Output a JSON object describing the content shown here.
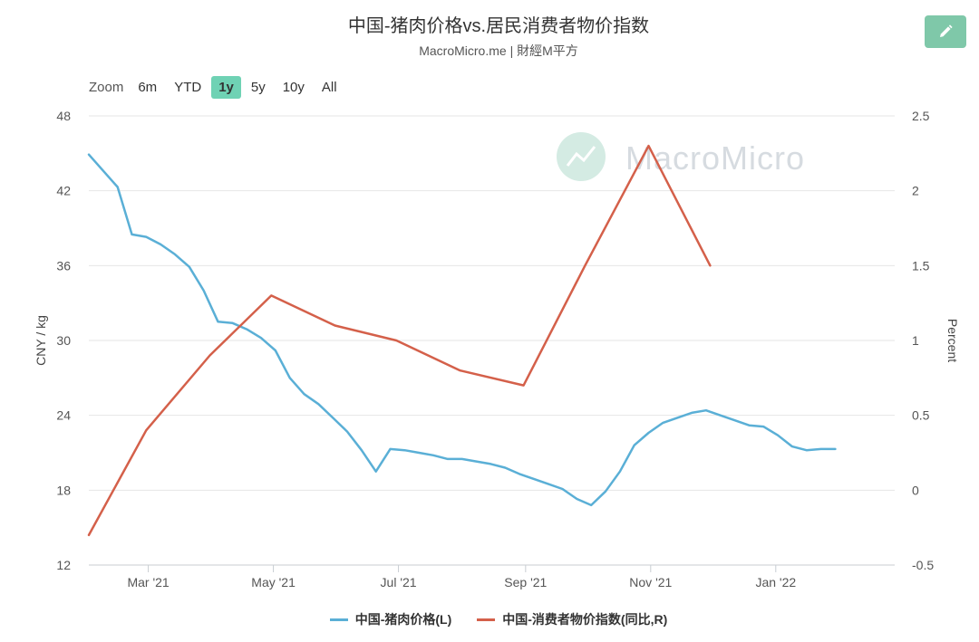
{
  "header": {
    "title": "中国-猪肉价格vs.居民消费者物价指数",
    "subtitle": "MacroMicro.me | 財經M平方",
    "edit_icon": "pencil-icon"
  },
  "zoom": {
    "label": "Zoom",
    "options": [
      "6m",
      "YTD",
      "1y",
      "5y",
      "10y",
      "All"
    ],
    "selected": "1y"
  },
  "watermark": {
    "text": "MacroMicro"
  },
  "chart_data": {
    "type": "line",
    "title": "中国-猪肉价格vs.居民消费者物价指数",
    "subtitle": "MacroMicro.me | 財經M平方",
    "grid": true,
    "legend_position": "bottom-center",
    "x_range": [
      "2021-01-31",
      "2022-02-28"
    ],
    "x_ticks": [
      {
        "date": "2021-03-01",
        "label": "Mar '21"
      },
      {
        "date": "2021-05-01",
        "label": "May '21"
      },
      {
        "date": "2021-07-01",
        "label": "Jul '21"
      },
      {
        "date": "2021-09-01",
        "label": "Sep '21"
      },
      {
        "date": "2021-11-01",
        "label": "Nov '21"
      },
      {
        "date": "2022-01-01",
        "label": "Jan '22"
      }
    ],
    "y_left": {
      "label": "CNY / kg",
      "range": [
        12,
        48
      ],
      "ticks": [
        12,
        18,
        24,
        30,
        36,
        42,
        48
      ]
    },
    "y_right": {
      "label": "Percent",
      "range": [
        -0.5,
        2.5
      ],
      "ticks": [
        -0.5,
        0,
        0.5,
        1,
        1.5,
        2,
        2.5
      ]
    },
    "series": [
      {
        "name": "中国-猪肉价格(L)",
        "axis": "left",
        "color": "#5aafd6",
        "points": [
          [
            "2021-01-31",
            44.9
          ],
          [
            "2021-02-14",
            42.3
          ],
          [
            "2021-02-21",
            38.5
          ],
          [
            "2021-02-28",
            38.3
          ],
          [
            "2021-03-07",
            37.7
          ],
          [
            "2021-03-14",
            36.9
          ],
          [
            "2021-03-21",
            35.9
          ],
          [
            "2021-03-28",
            34.0
          ],
          [
            "2021-04-04",
            31.5
          ],
          [
            "2021-04-11",
            31.4
          ],
          [
            "2021-04-18",
            30.9
          ],
          [
            "2021-04-25",
            30.2
          ],
          [
            "2021-05-02",
            29.2
          ],
          [
            "2021-05-09",
            27.0
          ],
          [
            "2021-05-16",
            25.7
          ],
          [
            "2021-05-23",
            24.9
          ],
          [
            "2021-05-30",
            23.8
          ],
          [
            "2021-06-06",
            22.7
          ],
          [
            "2021-06-13",
            21.2
          ],
          [
            "2021-06-20",
            19.5
          ],
          [
            "2021-06-27",
            21.3
          ],
          [
            "2021-07-04",
            21.2
          ],
          [
            "2021-07-11",
            21.0
          ],
          [
            "2021-07-18",
            20.8
          ],
          [
            "2021-07-25",
            20.5
          ],
          [
            "2021-08-01",
            20.5
          ],
          [
            "2021-08-08",
            20.3
          ],
          [
            "2021-08-15",
            20.1
          ],
          [
            "2021-08-22",
            19.8
          ],
          [
            "2021-08-29",
            19.3
          ],
          [
            "2021-09-05",
            18.9
          ],
          [
            "2021-09-12",
            18.5
          ],
          [
            "2021-09-19",
            18.1
          ],
          [
            "2021-09-26",
            17.3
          ],
          [
            "2021-10-03",
            16.8
          ],
          [
            "2021-10-10",
            17.9
          ],
          [
            "2021-10-17",
            19.5
          ],
          [
            "2021-10-24",
            21.6
          ],
          [
            "2021-10-31",
            22.6
          ],
          [
            "2021-11-07",
            23.4
          ],
          [
            "2021-11-14",
            23.8
          ],
          [
            "2021-11-21",
            24.2
          ],
          [
            "2021-11-28",
            24.4
          ],
          [
            "2021-12-05",
            24.0
          ],
          [
            "2021-12-12",
            23.6
          ],
          [
            "2021-12-19",
            23.2
          ],
          [
            "2021-12-26",
            23.1
          ],
          [
            "2022-01-02",
            22.4
          ],
          [
            "2022-01-09",
            21.5
          ],
          [
            "2022-01-16",
            21.2
          ],
          [
            "2022-01-23",
            21.3
          ],
          [
            "2022-01-30",
            21.3
          ]
        ]
      },
      {
        "name": "中国-消费者物价指数(同比,R)",
        "axis": "right",
        "color": "#d4604a",
        "points": [
          [
            "2021-01-31",
            -0.3
          ],
          [
            "2021-02-28",
            0.4
          ],
          [
            "2021-03-31",
            0.9
          ],
          [
            "2021-04-30",
            1.3
          ],
          [
            "2021-05-31",
            1.1
          ],
          [
            "2021-06-30",
            1.0
          ],
          [
            "2021-07-31",
            0.8
          ],
          [
            "2021-08-31",
            0.7
          ],
          [
            "2021-09-30",
            1.5
          ],
          [
            "2021-10-31",
            2.3
          ],
          [
            "2021-11-30",
            1.5
          ]
        ]
      }
    ]
  }
}
